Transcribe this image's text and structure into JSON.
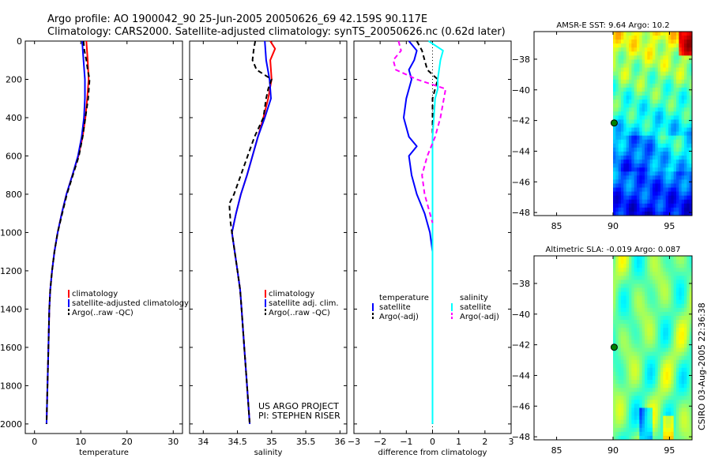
{
  "title_line1": "Argo profile: AO 1900042_90 25-Jun-2005 20050626_69 42.159S 90.117E",
  "title_line2": "Climatology: CARS2000. Satellite-adjusted climatology: synTS_20050626.nc (0.62d later)",
  "credit_line1": "US ARGO PROJECT",
  "credit_line2": "PI: STEPHEN RISER",
  "side_stamp": "CSIRO 03-Aug-2005 22:36:38",
  "colors": {
    "climatology": "#ff0000",
    "satellite": "#0000ff",
    "argo": "#000000",
    "salinity_sat": "#00ffff",
    "salinity_argo": "#ff00ff"
  },
  "chart_data": [
    {
      "type": "line",
      "title": "",
      "xlabel": "temperature",
      "ylabel": "",
      "xlim": [
        -2,
        32
      ],
      "ylim": [
        2050,
        0
      ],
      "xticks": [
        0,
        10,
        20,
        30
      ],
      "yticks": [
        0,
        200,
        400,
        600,
        800,
        1000,
        1200,
        1400,
        1600,
        1800,
        2000
      ],
      "legend": [
        "climatology",
        "satellite-adjusted climatology",
        "Argo(..raw -QC)"
      ],
      "series": [
        {
          "name": "climatology",
          "color": "climatology",
          "dash": "none",
          "points": [
            [
              11.2,
              0
            ],
            [
              11.5,
              100
            ],
            [
              11.7,
              200
            ],
            [
              11.4,
              300
            ],
            [
              11.0,
              400
            ],
            [
              10.4,
              500
            ],
            [
              9.5,
              600
            ],
            [
              8.2,
              700
            ],
            [
              6.9,
              800
            ],
            [
              5.9,
              900
            ],
            [
              5.0,
              1000
            ],
            [
              4.3,
              1100
            ],
            [
              3.8,
              1200
            ],
            [
              3.4,
              1300
            ],
            [
              3.2,
              1400
            ],
            [
              3.0,
              1600
            ],
            [
              2.8,
              1800
            ],
            [
              2.6,
              2000
            ]
          ]
        },
        {
          "name": "satellite-adjusted climatology",
          "color": "satellite",
          "dash": "none",
          "points": [
            [
              10.3,
              0
            ],
            [
              10.6,
              100
            ],
            [
              10.9,
              200
            ],
            [
              10.9,
              300
            ],
            [
              10.7,
              400
            ],
            [
              10.2,
              500
            ],
            [
              9.4,
              600
            ],
            [
              8.2,
              700
            ],
            [
              6.9,
              800
            ],
            [
              5.9,
              900
            ],
            [
              5.0,
              1000
            ],
            [
              4.3,
              1100
            ],
            [
              3.8,
              1200
            ],
            [
              3.4,
              1300
            ],
            [
              3.2,
              1400
            ],
            [
              3.0,
              1600
            ],
            [
              2.8,
              1800
            ],
            [
              2.6,
              2000
            ]
          ]
        },
        {
          "name": "Argo(..raw -QC)",
          "color": "argo",
          "dash": "6,4",
          "points": [
            [
              10.6,
              0
            ],
            [
              10.8,
              50
            ],
            [
              11.2,
              100
            ],
            [
              11.5,
              150
            ],
            [
              11.9,
              200
            ],
            [
              11.6,
              300
            ],
            [
              11.0,
              400
            ],
            [
              10.4,
              500
            ],
            [
              9.6,
              600
            ],
            [
              8.3,
              700
            ],
            [
              7.0,
              800
            ],
            [
              6.0,
              900
            ],
            [
              5.0,
              1000
            ],
            [
              4.3,
              1100
            ],
            [
              3.8,
              1200
            ],
            [
              3.4,
              1300
            ],
            [
              3.2,
              1400
            ],
            [
              3.0,
              1600
            ],
            [
              2.8,
              1800
            ],
            [
              2.6,
              2000
            ]
          ]
        }
      ]
    },
    {
      "type": "line",
      "title": "",
      "xlabel": "salinity",
      "ylabel": "",
      "xlim": [
        33.8,
        36.1
      ],
      "ylim": [
        2050,
        0
      ],
      "xticks": [
        34,
        34.5,
        35,
        35.5,
        36
      ],
      "xtick_labels": [
        "34",
        "34.5",
        "35",
        "35.5",
        "36"
      ],
      "yticks": [
        0,
        200,
        400,
        600,
        800,
        1000,
        1200,
        1400,
        1600,
        1800,
        2000
      ],
      "legend": [
        "climatology",
        "satellite adj. clim.",
        "Argo(..raw -QC)"
      ],
      "series": [
        {
          "name": "climatology",
          "color": "climatology",
          "dash": "none",
          "points": [
            [
              34.98,
              0
            ],
            [
              35.05,
              40
            ],
            [
              34.98,
              100
            ],
            [
              35.0,
              200
            ],
            [
              34.95,
              300
            ],
            [
              34.88,
              400
            ],
            [
              34.8,
              500
            ],
            [
              34.72,
              600
            ],
            [
              34.64,
              700
            ],
            [
              34.55,
              800
            ],
            [
              34.48,
              900
            ],
            [
              34.42,
              1000
            ],
            [
              34.46,
              1100
            ],
            [
              34.5,
              1200
            ],
            [
              34.54,
              1300
            ],
            [
              34.56,
              1400
            ],
            [
              34.6,
              1600
            ],
            [
              34.64,
              1800
            ],
            [
              34.68,
              2000
            ]
          ]
        },
        {
          "name": "satellite adj. clim.",
          "color": "satellite",
          "dash": "none",
          "points": [
            [
              34.9,
              0
            ],
            [
              34.92,
              100
            ],
            [
              34.97,
              200
            ],
            [
              34.99,
              300
            ],
            [
              34.9,
              400
            ],
            [
              34.8,
              500
            ],
            [
              34.72,
              600
            ],
            [
              34.64,
              700
            ],
            [
              34.55,
              800
            ],
            [
              34.48,
              900
            ],
            [
              34.42,
              1000
            ],
            [
              34.46,
              1100
            ],
            [
              34.5,
              1200
            ],
            [
              34.54,
              1300
            ],
            [
              34.56,
              1400
            ],
            [
              34.6,
              1600
            ],
            [
              34.64,
              1800
            ],
            [
              34.68,
              2000
            ]
          ]
        },
        {
          "name": "Argo(..raw -QC)",
          "color": "argo",
          "dash": "6,4",
          "points": [
            [
              34.76,
              0
            ],
            [
              34.74,
              40
            ],
            [
              34.72,
              100
            ],
            [
              34.78,
              150
            ],
            [
              35.0,
              200
            ],
            [
              34.95,
              250
            ],
            [
              34.92,
              300
            ],
            [
              34.88,
              400
            ],
            [
              34.75,
              500
            ],
            [
              34.65,
              600
            ],
            [
              34.55,
              700
            ],
            [
              34.45,
              800
            ],
            [
              34.38,
              850
            ],
            [
              34.4,
              950
            ],
            [
              34.42,
              1000
            ],
            [
              34.46,
              1100
            ],
            [
              34.5,
              1200
            ],
            [
              34.54,
              1300
            ],
            [
              34.56,
              1400
            ],
            [
              34.6,
              1600
            ],
            [
              34.64,
              1800
            ],
            [
              34.68,
              2000
            ]
          ]
        }
      ]
    },
    {
      "type": "line",
      "title": "",
      "xlabel": "difference from climatology",
      "ylabel": "",
      "xlim": [
        -3,
        3
      ],
      "ylim": [
        2050,
        0
      ],
      "xticks": [
        -3,
        -2,
        -1,
        0,
        1,
        2,
        3
      ],
      "yticks": [
        0,
        200,
        400,
        600,
        800,
        1000,
        1200,
        1400,
        1600,
        1800,
        2000
      ],
      "legend_left_title": "temperature",
      "legend_left": [
        "satellite",
        "Argo(-adj)"
      ],
      "legend_right_title": "salinity",
      "legend_right": [
        "satellite",
        "Argo(-adj)"
      ],
      "series": [
        {
          "name": "temperature satellite",
          "color": "satellite",
          "dash": "none",
          "points": [
            [
              -0.9,
              0
            ],
            [
              -0.6,
              50
            ],
            [
              -0.7,
              100
            ],
            [
              -0.9,
              150
            ],
            [
              -0.8,
              200
            ],
            [
              -1.0,
              300
            ],
            [
              -1.1,
              400
            ],
            [
              -0.9,
              500
            ],
            [
              -0.6,
              550
            ],
            [
              -0.9,
              600
            ],
            [
              -0.8,
              700
            ],
            [
              -0.6,
              800
            ],
            [
              -0.3,
              900
            ],
            [
              -0.1,
              1000
            ],
            [
              0,
              1100
            ],
            [
              0,
              1200
            ],
            [
              0,
              1400
            ],
            [
              0,
              1600
            ],
            [
              0,
              1800
            ],
            [
              0,
              2000
            ]
          ]
        },
        {
          "name": "temperature Argo(-adj)",
          "color": "argo",
          "dash": "6,4",
          "points": [
            [
              -0.6,
              0
            ],
            [
              -0.4,
              50
            ],
            [
              -0.3,
              100
            ],
            [
              -0.2,
              150
            ],
            [
              0.2,
              200
            ],
            [
              0,
              300
            ],
            [
              0,
              400
            ],
            [
              0,
              500
            ],
            [
              0,
              700
            ],
            [
              0,
              900
            ],
            [
              0,
              1100
            ],
            [
              0,
              1300
            ],
            [
              0,
              2000
            ]
          ]
        },
        {
          "name": "salinity satellite",
          "color": "salinity_sat",
          "dash": "none",
          "points": [
            [
              -0.15,
              0
            ],
            [
              0.4,
              50
            ],
            [
              0.3,
              100
            ],
            [
              0.2,
              200
            ],
            [
              0.2,
              250
            ],
            [
              0.1,
              300
            ],
            [
              0.05,
              400
            ],
            [
              0,
              500
            ],
            [
              0,
              600
            ],
            [
              0,
              800
            ],
            [
              0,
              1000
            ],
            [
              0,
              1200
            ],
            [
              0,
              1400
            ],
            [
              0,
              1600
            ],
            [
              0,
              1800
            ],
            [
              0,
              2000
            ]
          ]
        },
        {
          "name": "salinity Argo(-adj)",
          "color": "salinity_argo",
          "dash": "6,4",
          "points": [
            [
              -1.3,
              0
            ],
            [
              -1.2,
              50
            ],
            [
              -1.5,
              100
            ],
            [
              -1.4,
              150
            ],
            [
              -0.6,
              200
            ],
            [
              0.5,
              250
            ],
            [
              0.3,
              400
            ],
            [
              0.1,
              500
            ],
            [
              -0.2,
              600
            ],
            [
              -0.4,
              700
            ],
            [
              -0.3,
              800
            ],
            [
              -0.1,
              900
            ],
            [
              0,
              950
            ]
          ]
        }
      ]
    },
    {
      "type": "heatmap",
      "title": "AMSR-E SST: 9.64 Argo: 10.2",
      "xlabel": "",
      "ylabel": "",
      "xlim": [
        83,
        97
      ],
      "ylim": [
        -48.2,
        -36.2
      ],
      "xticks": [
        85,
        90,
        95
      ],
      "yticks": [
        -38,
        -40,
        -42,
        -44,
        -46,
        -48
      ],
      "data_x_start": 90,
      "argo_marker": [
        90.1,
        -42.16
      ]
    },
    {
      "type": "heatmap",
      "title": "Altimetric SLA: -0.019 Argo: 0.087",
      "xlabel": "",
      "ylabel": "",
      "xlim": [
        83,
        97
      ],
      "ylim": [
        -48.2,
        -36.2
      ],
      "xticks": [
        85,
        90,
        95
      ],
      "yticks": [
        -38,
        -40,
        -42,
        -44,
        -46,
        -48
      ],
      "data_x_start": 90,
      "argo_marker": [
        90.1,
        -42.16
      ]
    }
  ]
}
